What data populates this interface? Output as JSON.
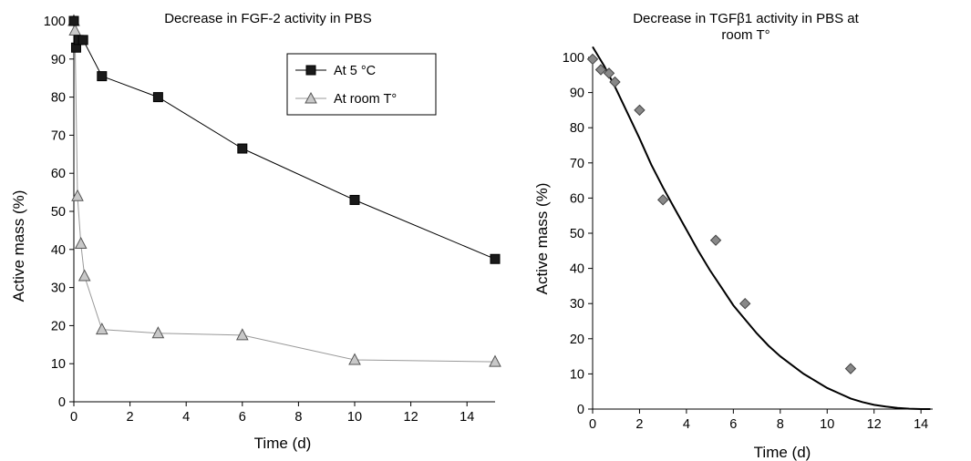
{
  "chart_data": [
    {
      "type": "line",
      "title": "Decrease in FGF-2 activity in PBS",
      "xlabel": "Time (d)",
      "ylabel": "Active mass (%)",
      "xlim": [
        0,
        15
      ],
      "ylim": [
        0,
        100
      ],
      "x_ticks": [
        "0",
        "2",
        "4",
        "6",
        "8",
        "10",
        "12",
        "14"
      ],
      "y_ticks": [
        "0",
        "10",
        "20",
        "30",
        "40",
        "50",
        "60",
        "70",
        "80",
        "90",
        "100"
      ],
      "grid": false,
      "legend_position": "top-right",
      "series": [
        {
          "name": "At 5 °C",
          "marker": "square",
          "color": "#000000",
          "fill": "#1a1a1a",
          "points": [
            [
              0,
              100
            ],
            [
              0.08,
              93
            ],
            [
              0.17,
              95
            ],
            [
              0.33,
              95
            ],
            [
              1,
              85.5
            ],
            [
              3,
              80
            ],
            [
              6,
              66.5
            ],
            [
              10,
              53
            ],
            [
              15,
              37.5
            ]
          ]
        },
        {
          "name": "At room T°",
          "marker": "triangle",
          "color": "#999999",
          "fill": "#c8c8c8",
          "points": [
            [
              0,
              100
            ],
            [
              0.04,
              97.5
            ],
            [
              0.13,
              54
            ],
            [
              0.25,
              41.5
            ],
            [
              0.38,
              33
            ],
            [
              1,
              19
            ],
            [
              3,
              18
            ],
            [
              6,
              17.5
            ],
            [
              10,
              11
            ],
            [
              15,
              10.5
            ]
          ]
        }
      ]
    },
    {
      "type": "scatter",
      "title": "Decrease in TGFβ1 activity in PBS at",
      "title_line2": "room T°",
      "xlabel": "Time (d)",
      "ylabel": "Active mass (%)",
      "xlim": [
        0,
        14.5
      ],
      "ylim": [
        0,
        100
      ],
      "x_ticks": [
        "0",
        "2",
        "4",
        "6",
        "8",
        "10",
        "12",
        "14"
      ],
      "y_ticks": [
        "0",
        "10",
        "20",
        "30",
        "40",
        "50",
        "60",
        "70",
        "80",
        "90",
        "100"
      ],
      "grid": false,
      "series": [
        {
          "marker": "diamond",
          "color": "#888888",
          "points": [
            [
              0,
              99.5
            ],
            [
              0.35,
              96.5
            ],
            [
              0.7,
              95.5
            ],
            [
              0.95,
              93
            ],
            [
              2,
              85
            ],
            [
              3,
              59.5
            ],
            [
              5.25,
              48
            ],
            [
              6.5,
              30
            ],
            [
              11,
              11.5
            ]
          ]
        }
      ],
      "trend_line": {
        "color": "#000000",
        "points": [
          [
            0,
            103
          ],
          [
            0.5,
            97.5
          ],
          [
            1,
            91
          ],
          [
            1.5,
            84
          ],
          [
            2,
            77
          ],
          [
            2.5,
            69.5
          ],
          [
            3,
            63
          ],
          [
            3.5,
            57
          ],
          [
            4,
            51
          ],
          [
            4.5,
            45
          ],
          [
            5,
            39.5
          ],
          [
            5.5,
            34.5
          ],
          [
            6,
            29.5
          ],
          [
            6.5,
            25.5
          ],
          [
            7,
            21.5
          ],
          [
            7.5,
            18
          ],
          [
            8,
            15
          ],
          [
            8.5,
            12.5
          ],
          [
            9,
            10
          ],
          [
            9.5,
            8
          ],
          [
            10,
            6
          ],
          [
            10.5,
            4.5
          ],
          [
            11,
            3
          ],
          [
            11.5,
            2
          ],
          [
            12,
            1.2
          ],
          [
            12.5,
            0.7
          ],
          [
            13,
            0.3
          ],
          [
            13.5,
            0.1
          ],
          [
            14,
            0
          ],
          [
            14.4,
            0
          ]
        ]
      }
    }
  ]
}
